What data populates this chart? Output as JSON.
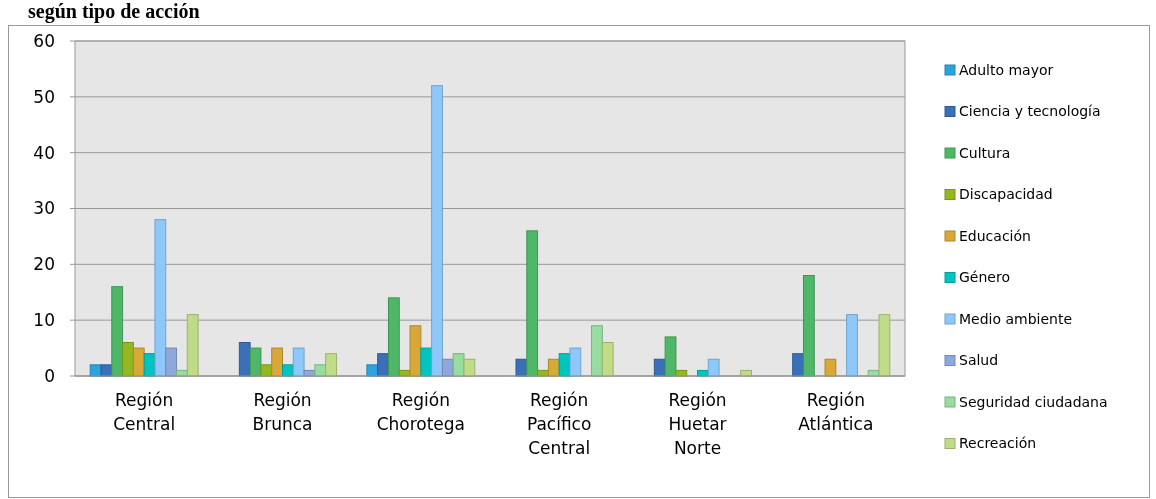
{
  "chart_data": {
    "type": "bar",
    "title": "según tipo de acción",
    "categories": [
      "Región Central",
      "Región Brunca",
      "Región Chorotega",
      "Región Pacífico Central",
      "Región Huetar Norte",
      "Región Atlántica"
    ],
    "series": [
      {
        "name": "Adulto mayor",
        "color": "#2aa3e0",
        "values": [
          2,
          0,
          2,
          0,
          0,
          0
        ]
      },
      {
        "name": "Ciencia y tecnología",
        "color": "#3a70b8",
        "values": [
          2,
          6,
          4,
          3,
          3,
          4
        ]
      },
      {
        "name": "Cultura",
        "color": "#4fb868",
        "values": [
          16,
          5,
          14,
          26,
          7,
          18
        ]
      },
      {
        "name": "Discapacidad",
        "color": "#93b820",
        "values": [
          6,
          2,
          1,
          1,
          1,
          0
        ]
      },
      {
        "name": "Educación",
        "color": "#d8a838",
        "values": [
          5,
          5,
          9,
          3,
          0,
          3
        ]
      },
      {
        "name": "Género",
        "color": "#00c4c0",
        "values": [
          4,
          2,
          5,
          4,
          1,
          0
        ]
      },
      {
        "name": "Medio ambiente",
        "color": "#8ec8fa",
        "values": [
          28,
          5,
          52,
          5,
          3,
          11
        ]
      },
      {
        "name": "Salud",
        "color": "#8ea8dc",
        "values": [
          5,
          1,
          3,
          0,
          0,
          0
        ]
      },
      {
        "name": "Seguridad ciudadana",
        "color": "#98dca0",
        "values": [
          1,
          2,
          4,
          9,
          0,
          1
        ]
      },
      {
        "name": "Recreación",
        "color": "#c0dc88",
        "values": [
          11,
          4,
          3,
          6,
          1,
          11
        ]
      }
    ],
    "ylim": [
      0,
      60
    ],
    "yticks": [
      0,
      10,
      20,
      30,
      40,
      50,
      60
    ],
    "grid": "y",
    "legend": "right"
  }
}
